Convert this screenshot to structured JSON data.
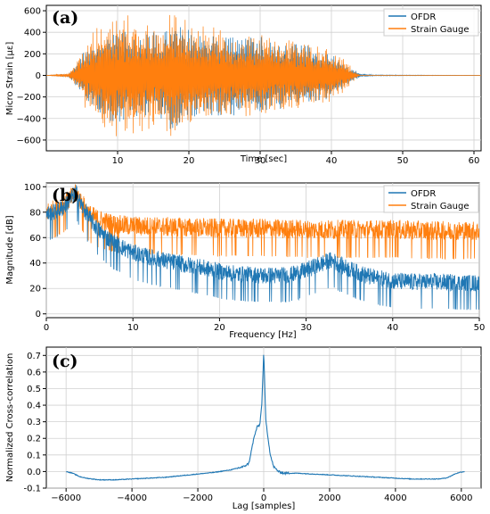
{
  "colors": {
    "ofdr": "#1f77b4",
    "strain_gauge": "#ff7f0e",
    "grid": "#d0d0d0",
    "axis": "#000000"
  },
  "chart_data": [
    {
      "panel": "(a)",
      "type": "line",
      "xlabel": "Time [sec]",
      "ylabel": "Micro Strain [με]",
      "xlim": [
        0,
        61
      ],
      "ylim": [
        -700,
        650
      ],
      "xticks": [
        10,
        20,
        30,
        40,
        50,
        60
      ],
      "yticks": [
        -600,
        -400,
        -200,
        0,
        200,
        400,
        600
      ],
      "grid": true,
      "legend": "top-right",
      "series": [
        {
          "name": "OFDR",
          "envelope": {
            "t": [
              0,
              3,
              4,
              6,
              8,
              10,
              12,
              14,
              16,
              18,
              20,
              22,
              24,
              26,
              28,
              30,
              32,
              34,
              36,
              38,
              40,
              42,
              44,
              46,
              61
            ],
            "amp": [
              0,
              10,
              80,
              300,
              420,
              460,
              420,
              380,
              430,
              560,
              440,
              420,
              400,
              380,
              370,
              390,
              360,
              340,
              300,
              280,
              200,
              100,
              20,
              5,
              0
            ]
          }
        },
        {
          "name": "Strain Gauge",
          "envelope": {
            "t": [
              0,
              3,
              4,
              6,
              8,
              10,
              12,
              14,
              16,
              18,
              20,
              22,
              24,
              26,
              28,
              30,
              32,
              34,
              36,
              38,
              40,
              42,
              43,
              44,
              61
            ],
            "amp": [
              0,
              20,
              100,
              380,
              560,
              600,
              580,
              520,
              500,
              620,
              520,
              480,
              440,
              420,
              400,
              420,
              380,
              350,
              320,
              300,
              250,
              150,
              60,
              0,
              0
            ]
          }
        }
      ]
    },
    {
      "panel": "(b)",
      "type": "line",
      "xlabel": "Frequency [Hz]",
      "ylabel": "Magnitude [dB]",
      "xlim": [
        0,
        50
      ],
      "ylim": [
        -3,
        103
      ],
      "xticks": [
        0,
        10,
        20,
        30,
        40,
        50
      ],
      "yticks": [
        0,
        20,
        40,
        60,
        80,
        100
      ],
      "grid": true,
      "legend": "top-right",
      "series": [
        {
          "name": "OFDR",
          "trend": {
            "f": [
              0,
              1,
              2,
              3,
              3.5,
              4,
              5,
              6,
              7,
              8,
              10,
              12,
              15,
              18,
              20,
              22,
              25,
              28,
              30,
              32,
              33,
              34,
              36,
              38,
              40,
              42,
              45,
              48,
              50
            ],
            "db": [
              78,
              80,
              84,
              92,
              95,
              86,
              75,
              66,
              60,
              55,
              48,
              44,
              40,
              36,
              33,
              31,
              30,
              30,
              34,
              40,
              42,
              38,
              32,
              28,
              26,
              25,
              25,
              24,
              24
            ]
          }
        },
        {
          "name": "Strain Gauge",
          "trend": {
            "f": [
              0,
              1,
              2,
              3,
              3.5,
              4,
              5,
              6,
              7,
              8,
              10,
              15,
              20,
              25,
              30,
              35,
              40,
              45,
              50
            ],
            "db": [
              80,
              82,
              86,
              92,
              95,
              88,
              78,
              74,
              72,
              70,
              69,
              68,
              67,
              67,
              66,
              66,
              66,
              65,
              65
            ]
          }
        }
      ]
    },
    {
      "panel": "(c)",
      "type": "line",
      "xlabel": "Lag [samples]",
      "ylabel": "Normalized Cross-correlation",
      "xlim": [
        -6600,
        6600
      ],
      "ylim": [
        -0.1,
        0.75
      ],
      "xticks": [
        -6000,
        -4000,
        -2000,
        0,
        2000,
        4000,
        6000
      ],
      "yticks": [
        -0.1,
        0.0,
        0.1,
        0.2,
        0.3,
        0.4,
        0.5,
        0.6,
        0.7
      ],
      "grid": true,
      "series": [
        {
          "name": "",
          "x": [
            -6000,
            -5800,
            -5600,
            -5400,
            -5000,
            -4500,
            -4000,
            -3500,
            -3000,
            -2500,
            -2000,
            -1500,
            -1000,
            -800,
            -600,
            -450,
            -300,
            -200,
            -120,
            -60,
            -20,
            0,
            20,
            60,
            120,
            200,
            300,
            450,
            600,
            800,
            1000,
            1500,
            2000,
            2500,
            3000,
            3500,
            4000,
            4500,
            5000,
            5300,
            5500,
            5600,
            5700,
            5800,
            5900,
            6000,
            6100
          ],
          "y": [
            0.0,
            -0.01,
            -0.03,
            -0.04,
            -0.05,
            -0.05,
            -0.045,
            -0.04,
            -0.035,
            -0.025,
            -0.015,
            -0.005,
            0.01,
            0.02,
            0.03,
            0.05,
            0.2,
            0.27,
            0.28,
            0.4,
            0.6,
            0.72,
            0.6,
            0.32,
            0.22,
            0.1,
            0.03,
            0.0,
            -0.01,
            -0.01,
            -0.01,
            -0.015,
            -0.02,
            -0.025,
            -0.03,
            -0.035,
            -0.04,
            -0.045,
            -0.045,
            -0.045,
            -0.04,
            -0.035,
            -0.025,
            -0.015,
            -0.008,
            -0.003,
            0.0
          ]
        }
      ]
    }
  ],
  "panels": {
    "a": {
      "tag": "(a)",
      "ylabel": "Micro Strain [με]",
      "xlabel": "Time [sec]",
      "legend": [
        "OFDR",
        "Strain Gauge"
      ]
    },
    "b": {
      "tag": "(b)",
      "ylabel": "Magnitude [dB]",
      "xlabel": "Frequency [Hz]",
      "legend": [
        "OFDR",
        "Strain Gauge"
      ]
    },
    "c": {
      "tag": "(c)",
      "ylabel": "Normalized Cross-correlation",
      "xlabel": "Lag [samples]"
    }
  }
}
